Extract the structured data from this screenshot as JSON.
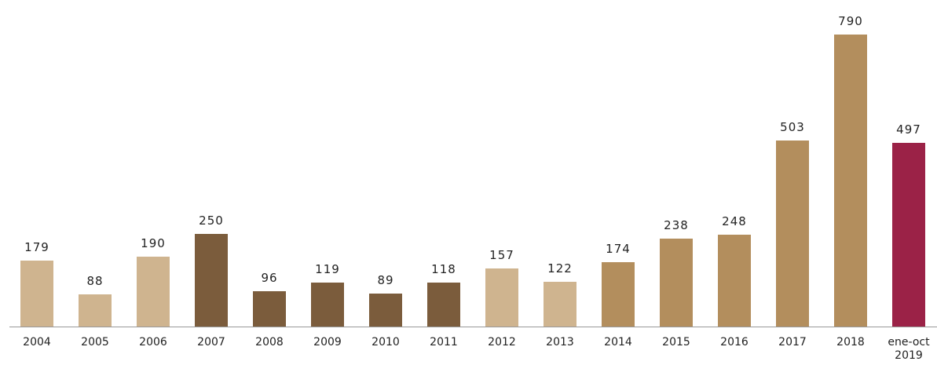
{
  "chart_data": {
    "type": "bar",
    "categories": [
      "2004",
      "2005",
      "2006",
      "2007",
      "2008",
      "2009",
      "2010",
      "2011",
      "2012",
      "2013",
      "2014",
      "2015",
      "2016",
      "2017",
      "2018",
      "ene-oct 2019"
    ],
    "values": [
      179,
      88,
      190,
      250,
      96,
      119,
      89,
      118,
      157,
      122,
      174,
      238,
      248,
      503,
      790,
      497
    ],
    "colors": [
      "#cfb48f",
      "#cfb48f",
      "#cfb48f",
      "#7b5c3c",
      "#7b5c3c",
      "#7b5c3c",
      "#7b5c3c",
      "#7b5c3c",
      "#cfb48f",
      "#cfb48f",
      "#b38e5d",
      "#b38e5d",
      "#b38e5d",
      "#b38e5d",
      "#b38e5d",
      "#9b2247"
    ]
  }
}
